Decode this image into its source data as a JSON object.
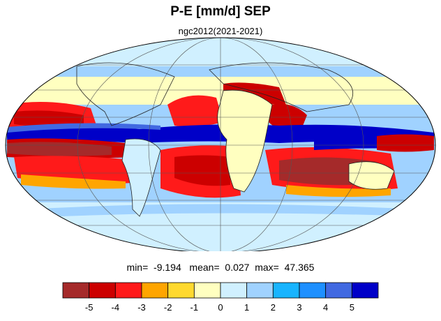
{
  "title": "P-E [mm/d] SEP",
  "subtitle": "ngc2012(2021-2021)",
  "stats": {
    "min_label": "min=",
    "min_value": "-9.194",
    "mean_label": "mean=",
    "mean_value": "0.027",
    "max_label": "max=",
    "max_value": "47.365"
  },
  "colorbar": {
    "colors": [
      "#a52a2a",
      "#cc0000",
      "#ff1a1a",
      "#ffa500",
      "#ffd92f",
      "#ffffc0",
      "#d0f0ff",
      "#a0d2ff",
      "#18b4ff",
      "#1e90ff",
      "#4169e1",
      "#0000c8"
    ],
    "tick_labels": [
      "-5",
      "-4",
      "-3",
      "-2",
      "-1",
      "0",
      "1",
      "2",
      "3",
      "4",
      "5"
    ]
  },
  "map": {
    "projection": "mollweide",
    "palette_icons": "colorbar.colors"
  }
}
